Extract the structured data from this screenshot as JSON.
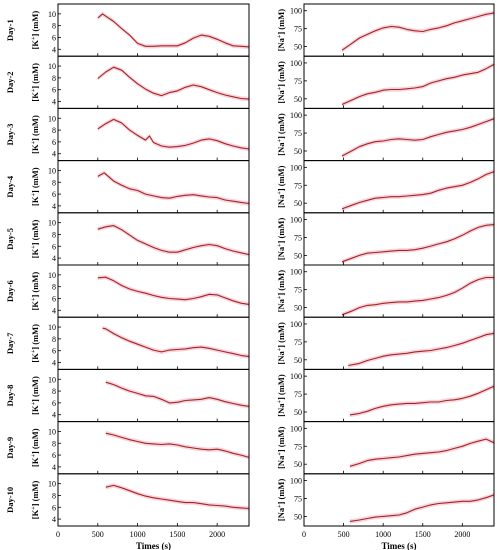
{
  "chart_data": [
    {
      "type": "line",
      "title": "",
      "xlabel": "Times (s)",
      "ylabel": "[K+] (mM)",
      "xlim": [
        0,
        2400
      ],
      "xticks": [
        "0",
        "500",
        "1000",
        "1500",
        "2000"
      ],
      "ylim": [
        3,
        11.5
      ],
      "yticks": [
        "4",
        "6",
        "8",
        "10"
      ],
      "grid": false,
      "colors": {
        "line": "#a3261d",
        "band": "#f4c4d4"
      },
      "panels": [
        {
          "row_label": "Day-1",
          "ylabel": "[K+] (mM)",
          "x": [
            500,
            560,
            600,
            700,
            800,
            900,
            1000,
            1100,
            1200,
            1300,
            1400,
            1500,
            1600,
            1700,
            1800,
            1900,
            2000,
            2100,
            2200,
            2300,
            2400
          ],
          "y": [
            9.3,
            10.0,
            9.6,
            8.7,
            7.5,
            6.4,
            5.0,
            4.5,
            4.5,
            4.6,
            4.6,
            4.6,
            5.1,
            5.9,
            6.4,
            6.2,
            5.7,
            5.1,
            4.6,
            4.5,
            4.4
          ]
        },
        {
          "row_label": "Day-2",
          "ylabel": "[K+] (mM)",
          "x": [
            500,
            600,
            700,
            800,
            900,
            1000,
            1100,
            1200,
            1300,
            1400,
            1500,
            1600,
            1700,
            1800,
            1900,
            2000,
            2100,
            2200,
            2300,
            2400
          ],
          "y": [
            7.9,
            9.0,
            9.8,
            9.3,
            8.1,
            7.0,
            6.1,
            5.4,
            5.0,
            5.5,
            5.8,
            6.4,
            6.8,
            6.5,
            6.0,
            5.5,
            5.1,
            4.8,
            4.5,
            4.4
          ]
        },
        {
          "row_label": "Day-3",
          "ylabel": "[K+] (mM)",
          "x": [
            500,
            600,
            700,
            800,
            900,
            1000,
            1100,
            1150,
            1200,
            1300,
            1400,
            1500,
            1600,
            1700,
            1800,
            1900,
            2000,
            2100,
            2200,
            2300,
            2400
          ],
          "y": [
            8.2,
            9.1,
            9.8,
            9.2,
            8.0,
            7.1,
            6.3,
            7.0,
            5.9,
            5.3,
            5.1,
            5.2,
            5.4,
            5.8,
            6.3,
            6.5,
            6.2,
            5.7,
            5.3,
            5.0,
            4.8
          ]
        },
        {
          "row_label": "Day-4",
          "ylabel": "[K+] (mM)",
          "x": [
            500,
            580,
            700,
            800,
            900,
            1000,
            1100,
            1200,
            1300,
            1400,
            1500,
            1600,
            1700,
            1800,
            1900,
            2000,
            2100,
            2200,
            2300,
            2400
          ],
          "y": [
            9.0,
            9.6,
            8.2,
            7.5,
            6.9,
            6.6,
            6.0,
            5.7,
            5.4,
            5.3,
            5.6,
            5.8,
            5.9,
            5.7,
            5.5,
            5.4,
            5.0,
            4.8,
            4.6,
            4.4
          ]
        },
        {
          "row_label": "Day-5",
          "ylabel": "[K+] (mM)",
          "x": [
            500,
            600,
            700,
            800,
            900,
            1000,
            1100,
            1200,
            1300,
            1400,
            1500,
            1600,
            1700,
            1800,
            1900,
            2000,
            2100,
            2200,
            2300,
            2400
          ],
          "y": [
            8.9,
            9.3,
            9.5,
            8.8,
            7.9,
            7.0,
            6.4,
            5.8,
            5.3,
            5.0,
            5.0,
            5.4,
            5.8,
            6.1,
            6.3,
            6.1,
            5.6,
            5.2,
            4.9,
            4.6
          ]
        },
        {
          "row_label": "Day-6",
          "ylabel": "[K+] (mM)",
          "x": [
            500,
            600,
            700,
            800,
            900,
            1000,
            1100,
            1200,
            1300,
            1400,
            1500,
            1600,
            1700,
            1800,
            1900,
            2000,
            2100,
            2200,
            2300,
            2400
          ],
          "y": [
            9.5,
            9.6,
            9.0,
            8.2,
            7.6,
            7.2,
            6.9,
            6.5,
            6.2,
            6.0,
            5.9,
            5.8,
            6.0,
            6.3,
            6.7,
            6.6,
            6.1,
            5.6,
            5.2,
            5.0
          ]
        },
        {
          "row_label": "Day-7",
          "ylabel": "[K+] (mM)",
          "x": [
            560,
            600,
            700,
            800,
            900,
            1000,
            1100,
            1200,
            1300,
            1400,
            1500,
            1600,
            1700,
            1800,
            1900,
            2000,
            2100,
            2200,
            2300,
            2400
          ],
          "y": [
            9.8,
            9.7,
            8.9,
            8.2,
            7.6,
            7.1,
            6.6,
            6.1,
            5.8,
            6.1,
            6.2,
            6.3,
            6.5,
            6.6,
            6.4,
            6.1,
            5.8,
            5.5,
            5.2,
            5.0
          ]
        },
        {
          "row_label": "Day-8",
          "ylabel": "[K+] (mM)",
          "x": [
            600,
            700,
            800,
            900,
            1000,
            1100,
            1200,
            1300,
            1400,
            1500,
            1600,
            1700,
            1800,
            1900,
            2000,
            2100,
            2200,
            2300,
            2400
          ],
          "y": [
            9.5,
            9.1,
            8.5,
            8.0,
            7.6,
            7.2,
            7.1,
            6.6,
            6.0,
            6.1,
            6.4,
            6.5,
            6.6,
            6.9,
            6.6,
            6.2,
            5.9,
            5.6,
            5.4
          ]
        },
        {
          "row_label": "Day-9",
          "ylabel": "[K+] (mM)",
          "x": [
            600,
            700,
            800,
            900,
            1000,
            1100,
            1200,
            1300,
            1400,
            1500,
            1600,
            1700,
            1800,
            1900,
            2000,
            2100,
            2200,
            2300,
            2400
          ],
          "y": [
            9.7,
            9.4,
            9.0,
            8.6,
            8.3,
            8.0,
            7.9,
            7.8,
            7.9,
            7.7,
            7.4,
            7.2,
            7.0,
            6.9,
            7.0,
            6.7,
            6.3,
            6.0,
            5.6
          ]
        },
        {
          "row_label": "Day-10",
          "ylabel": "[K+] (mM)",
          "x": [
            600,
            700,
            800,
            900,
            1000,
            1100,
            1200,
            1300,
            1400,
            1500,
            1600,
            1700,
            1800,
            1900,
            2000,
            2100,
            2200,
            2300,
            2400
          ],
          "y": [
            9.4,
            9.7,
            9.3,
            8.8,
            8.3,
            7.9,
            7.6,
            7.4,
            7.2,
            7.0,
            6.8,
            6.8,
            6.6,
            6.4,
            6.3,
            6.2,
            6.0,
            5.9,
            5.8
          ]
        }
      ]
    },
    {
      "type": "line",
      "title": "",
      "xlabel": "Times (s)",
      "ylabel": "[Na+] (mM)",
      "xlim": [
        0,
        2400
      ],
      "xticks": [
        "0",
        "500",
        "1000",
        "1500",
        "2000"
      ],
      "ylim": [
        38,
        108
      ],
      "yticks": [
        "50",
        "75",
        "100"
      ],
      "grid": false,
      "colors": {
        "line": "#a3261d",
        "band": "#f4c4d4"
      },
      "panels": [
        {
          "row_label": "Day-1",
          "ylabel": "[Na+] (mM)",
          "x": [
            480,
            600,
            700,
            800,
            900,
            1000,
            1100,
            1200,
            1300,
            1400,
            1500,
            1600,
            1700,
            1800,
            1900,
            2000,
            2100,
            2200,
            2300,
            2400
          ],
          "y": [
            45,
            54,
            62,
            67,
            72,
            76,
            78,
            77,
            74,
            72,
            71,
            74,
            76,
            79,
            83,
            86,
            89,
            92,
            95,
            97
          ]
        },
        {
          "row_label": "Day-2",
          "ylabel": "[Na+] (mM)",
          "x": [
            480,
            600,
            700,
            800,
            900,
            1000,
            1100,
            1200,
            1300,
            1400,
            1500,
            1600,
            1700,
            1800,
            1900,
            2000,
            2100,
            2200,
            2300,
            2400
          ],
          "y": [
            42,
            48,
            53,
            57,
            59,
            62,
            63,
            63,
            64,
            65,
            67,
            72,
            75,
            78,
            80,
            83,
            85,
            87,
            92,
            98
          ]
        },
        {
          "row_label": "Day-3",
          "ylabel": "[Na+] (mM)",
          "x": [
            480,
            600,
            700,
            800,
            900,
            1000,
            1100,
            1200,
            1300,
            1400,
            1500,
            1600,
            1700,
            1800,
            1900,
            2000,
            2100,
            2200,
            2300,
            2400
          ],
          "y": [
            43,
            50,
            56,
            60,
            63,
            64,
            66,
            67,
            66,
            65,
            66,
            70,
            73,
            76,
            78,
            80,
            83,
            87,
            91,
            95
          ]
        },
        {
          "row_label": "Day-4",
          "ylabel": "[Na+] (mM)",
          "x": [
            480,
            600,
            700,
            800,
            900,
            1000,
            1100,
            1200,
            1300,
            1400,
            1500,
            1600,
            1700,
            1800,
            1900,
            2000,
            2100,
            2200,
            2300,
            2400
          ],
          "y": [
            42,
            47,
            51,
            54,
            57,
            58,
            59,
            59,
            60,
            61,
            62,
            64,
            68,
            71,
            73,
            75,
            79,
            84,
            90,
            94
          ]
        },
        {
          "row_label": "Day-5",
          "ylabel": "[Na+] (mM)",
          "x": [
            480,
            600,
            700,
            800,
            900,
            1000,
            1100,
            1200,
            1300,
            1400,
            1500,
            1600,
            1700,
            1800,
            1900,
            2000,
            2100,
            2200,
            2300,
            2400
          ],
          "y": [
            41,
            46,
            50,
            53,
            54,
            55,
            56,
            57,
            57,
            58,
            60,
            63,
            66,
            69,
            73,
            78,
            84,
            89,
            92,
            93
          ]
        },
        {
          "row_label": "Day-6",
          "ylabel": "[Na+] (mM)",
          "x": [
            480,
            600,
            700,
            800,
            900,
            1000,
            1100,
            1200,
            1300,
            1400,
            1500,
            1600,
            1700,
            1800,
            1900,
            2000,
            2100,
            2200,
            2300,
            2400
          ],
          "y": [
            40,
            45,
            50,
            53,
            54,
            56,
            57,
            58,
            58,
            59,
            60,
            62,
            64,
            67,
            71,
            77,
            84,
            89,
            92,
            92
          ]
        },
        {
          "row_label": "Day-7",
          "ylabel": "[Na+] (mM)",
          "x": [
            560,
            700,
            800,
            900,
            1000,
            1100,
            1200,
            1300,
            1400,
            1500,
            1600,
            1700,
            1800,
            1900,
            2000,
            2100,
            2200,
            2300,
            2400
          ],
          "y": [
            42,
            45,
            49,
            52,
            55,
            57,
            58,
            59,
            61,
            62,
            63,
            65,
            67,
            70,
            73,
            77,
            81,
            85,
            87
          ]
        },
        {
          "row_label": "Day-8",
          "ylabel": "[Na+] (mM)",
          "x": [
            580,
            700,
            800,
            900,
            1000,
            1100,
            1200,
            1300,
            1400,
            1500,
            1600,
            1700,
            1800,
            1900,
            2000,
            2100,
            2200,
            2300,
            2400
          ],
          "y": [
            46,
            48,
            51,
            55,
            58,
            60,
            61,
            62,
            62,
            63,
            64,
            64,
            66,
            67,
            69,
            72,
            76,
            81,
            86
          ]
        },
        {
          "row_label": "Day-9",
          "ylabel": "[Na+] (mM)",
          "x": [
            580,
            700,
            800,
            900,
            1000,
            1100,
            1200,
            1300,
            1400,
            1500,
            1600,
            1700,
            1800,
            1900,
            2000,
            2100,
            2200,
            2300,
            2400
          ],
          "y": [
            47,
            51,
            55,
            57,
            58,
            59,
            60,
            62,
            64,
            65,
            66,
            67,
            69,
            72,
            75,
            79,
            82,
            85,
            80
          ]
        },
        {
          "row_label": "Day-10",
          "ylabel": "[Na+] (mM)",
          "x": [
            580,
            700,
            800,
            900,
            1000,
            1100,
            1200,
            1300,
            1400,
            1500,
            1600,
            1700,
            1800,
            1900,
            2000,
            2100,
            2200,
            2300,
            2400
          ],
          "y": [
            43,
            45,
            47,
            49,
            50,
            51,
            52,
            55,
            60,
            63,
            66,
            68,
            69,
            70,
            71,
            71,
            73,
            76,
            80
          ]
        }
      ]
    }
  ]
}
